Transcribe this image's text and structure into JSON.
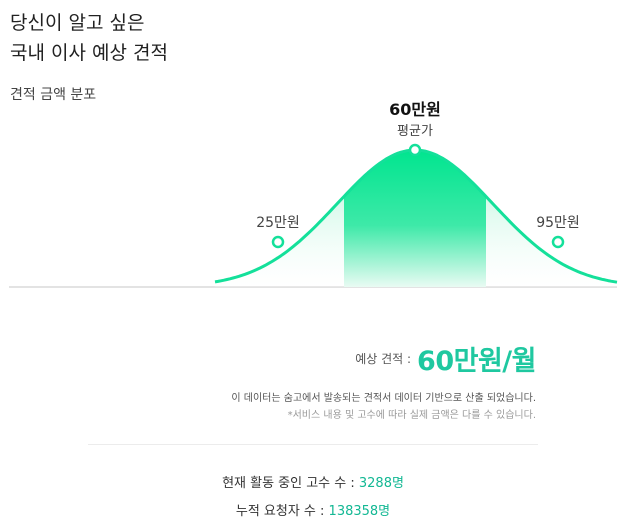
{
  "heading": {
    "line1": "당신이 알고 싶은",
    "line2": "국내 이사 예상 견적"
  },
  "subheading": "견적 금액 분포",
  "chart_data": {
    "type": "area",
    "title": "",
    "x": [
      "25만원",
      "60만원",
      "95만원"
    ],
    "points": [
      {
        "label": "25만원",
        "value": 25
      },
      {
        "label": "60만원",
        "value": 60,
        "caption": "평균가"
      },
      {
        "label": "95만원",
        "value": 95
      }
    ],
    "xlim": [
      0,
      120
    ],
    "highlight_range": [
      40,
      80
    ],
    "grid": false,
    "legend": "none",
    "colors": {
      "curve": "#14e09a",
      "highlight": "#00e58f",
      "fill_dark": "#9ff2cf",
      "fill_light": "#ffffff",
      "baseline": "#c7c7c7"
    }
  },
  "avg": {
    "value": "60만원",
    "caption": "평균가"
  },
  "min_label": "25만원",
  "max_label": "95만원",
  "estimate": {
    "label": "예상 견적 :",
    "value": "60만원/월"
  },
  "notes": {
    "line1": "이 데이터는 숨고에서 발송되는 견적서 데이터 기반으로 산출 되었습니다.",
    "line2": "*서비스 내용 및 고수에 따라 실제 금액은 다를 수 있습니다."
  },
  "stats": {
    "active_label": "현재 활동 중인 고수 수 :",
    "active_value": "3288명",
    "requests_label": "누적 요청자 수 :",
    "requests_value": "138358명"
  }
}
